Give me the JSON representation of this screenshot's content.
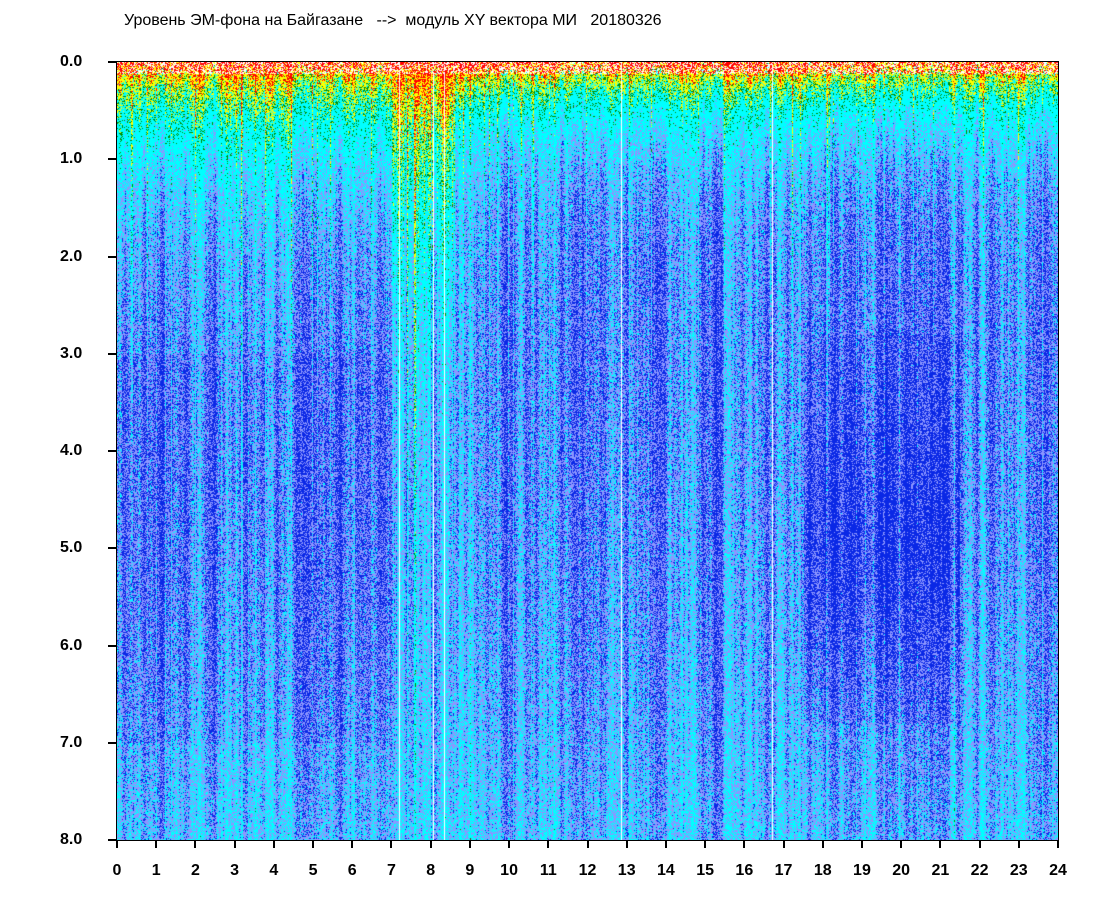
{
  "chart_data": {
    "type": "heatmap",
    "title": "Уровень ЭМ-фона на Байгазане   -->  модуль XY вектора МИ   20180326",
    "xlabel": "",
    "ylabel": "",
    "xlim": [
      0,
      24
    ],
    "ylim": [
      8.0,
      0.0
    ],
    "x_ticks": [
      "0",
      "1",
      "2",
      "3",
      "4",
      "5",
      "6",
      "7",
      "8",
      "9",
      "10",
      "11",
      "12",
      "13",
      "14",
      "15",
      "16",
      "17",
      "18",
      "19",
      "20",
      "21",
      "22",
      "23",
      "24"
    ],
    "y_ticks": [
      "0.0",
      "1.0",
      "2.0",
      "3.0",
      "4.0",
      "5.0",
      "6.0",
      "7.0",
      "8.0"
    ],
    "y_inverted": true,
    "grid": false,
    "colorscale": [
      "#0a28e6",
      "#8c96ff",
      "#00ffff",
      "#008c00",
      "#ffff00",
      "#ff0000"
    ],
    "high_level_zone_x": [
      7.0,
      8.6
    ],
    "low_level_zone_x": [
      17.5,
      21.5
    ],
    "gap_lines_x": [
      7.2,
      8.05,
      8.35,
      12.85,
      16.7
    ]
  }
}
